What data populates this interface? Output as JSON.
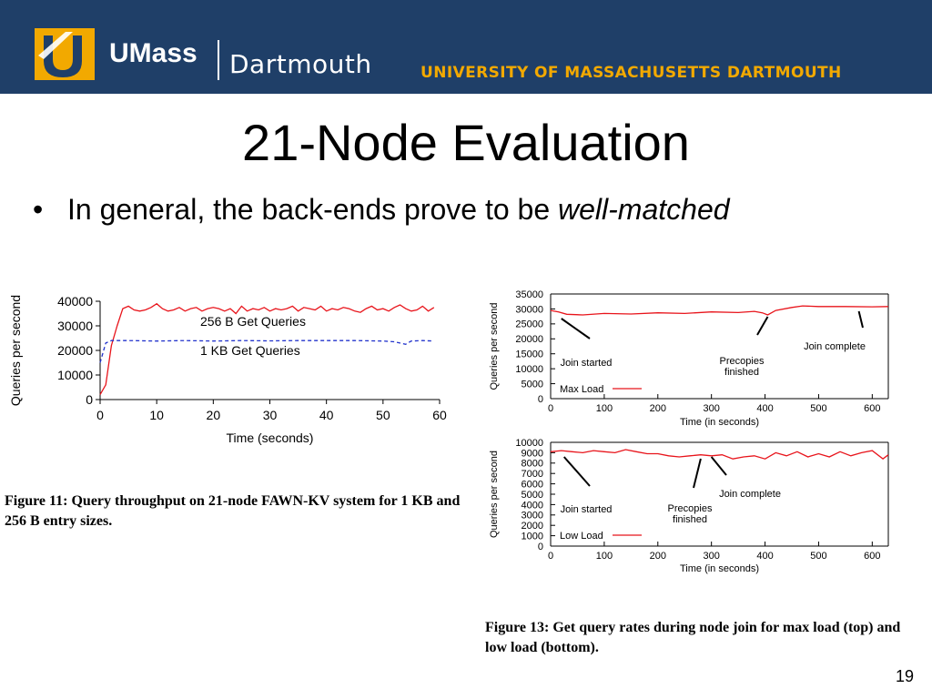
{
  "header": {
    "logo_strong": "UMass",
    "logo_light": "Dartmouth",
    "university": "UNIVERSITY OF MASSACHUSETTS DARTMOUTH",
    "accent_color": "#f2a900",
    "bar_color": "#1f3f68"
  },
  "slide": {
    "title": "21-Node Evaluation",
    "bullet_prefix": "In general, the back-ends prove to be ",
    "bullet_emphasis": "well-matched",
    "page_number": "19"
  },
  "captions": {
    "figure11": "Figure 11: Query throughput on 21-node FAWN-KV system for 1 KB and 256 B entry sizes.",
    "figure13": "Figure 13: Get query rates during node join for max load (top) and low load (bottom)."
  },
  "chart_data": [
    {
      "type": "line",
      "id": "fig11",
      "xlabel": "Time (seconds)",
      "ylabel": "Queries per second",
      "xlim": [
        0,
        60
      ],
      "ylim": [
        0,
        40000
      ],
      "xticks": [
        0,
        10,
        20,
        30,
        40,
        50,
        60
      ],
      "yticks": [
        0,
        10000,
        20000,
        30000,
        40000
      ],
      "series": [
        {
          "name": "256 B Get Queries",
          "color": "#e8141b",
          "style": "solid",
          "x": [
            0,
            1,
            2,
            3,
            4,
            5,
            6,
            7,
            8,
            9,
            10,
            11,
            12,
            13,
            14,
            15,
            16,
            17,
            18,
            19,
            20,
            21,
            22,
            23,
            24,
            25,
            26,
            27,
            28,
            29,
            30,
            31,
            32,
            33,
            34,
            35,
            36,
            37,
            38,
            39,
            40,
            41,
            42,
            43,
            44,
            45,
            46,
            47,
            48,
            49,
            50,
            51,
            52,
            53,
            54,
            55,
            56,
            57,
            58,
            59
          ],
          "y": [
            2000,
            6000,
            22000,
            30000,
            37000,
            38000,
            36500,
            36000,
            36500,
            37500,
            39000,
            37000,
            36000,
            36500,
            37500,
            36000,
            37000,
            37500,
            36000,
            37000,
            37500,
            37000,
            36000,
            37000,
            35000,
            38000,
            36000,
            37000,
            36500,
            37500,
            36000,
            37000,
            36500,
            37000,
            38000,
            36000,
            37500,
            37000,
            36500,
            38000,
            36000,
            37000,
            36500,
            37500,
            37000,
            36000,
            35500,
            37000,
            38000,
            36500,
            37000,
            36000,
            37500,
            38500,
            37000,
            36000,
            36500,
            38000,
            36000,
            37500
          ]
        },
        {
          "name": "1 KB Get Queries",
          "color": "#2233cc",
          "style": "dashed",
          "x": [
            0,
            1,
            2,
            3,
            5,
            10,
            15,
            20,
            25,
            30,
            35,
            40,
            45,
            50,
            52,
            54,
            55,
            57,
            59
          ],
          "y": [
            15000,
            23000,
            24000,
            24000,
            24000,
            23800,
            24000,
            23800,
            24000,
            23900,
            24000,
            24000,
            24000,
            23800,
            23500,
            22500,
            23800,
            24000,
            23800
          ]
        }
      ]
    },
    {
      "type": "line",
      "id": "fig13-top",
      "xlabel": "Time (in seconds)",
      "ylabel": "Queries per second",
      "xlim": [
        0,
        630
      ],
      "ylim": [
        0,
        35000
      ],
      "xticks": [
        0,
        100,
        200,
        300,
        400,
        500,
        600
      ],
      "yticks": [
        0,
        5000,
        10000,
        15000,
        20000,
        25000,
        30000,
        35000
      ],
      "legend": "bottom-left",
      "series": [
        {
          "name": "Max Load",
          "color": "#e8141b",
          "x": [
            0,
            15,
            30,
            60,
            100,
            150,
            200,
            250,
            300,
            350,
            380,
            395,
            405,
            420,
            450,
            470,
            500,
            550,
            600,
            630
          ],
          "y": [
            29500,
            29000,
            28200,
            28000,
            28500,
            28300,
            28700,
            28500,
            29000,
            28800,
            29200,
            28700,
            28000,
            29500,
            30500,
            31000,
            30800,
            30800,
            30700,
            30800
          ]
        }
      ],
      "annotations": [
        {
          "text": "Join started",
          "x": 20
        },
        {
          "text": "Precopies finished",
          "x": 405
        },
        {
          "text": "Join complete",
          "x": 575
        }
      ]
    },
    {
      "type": "line",
      "id": "fig13-bottom",
      "xlabel": "Time (in seconds)",
      "ylabel": "Queries per second",
      "xlim": [
        0,
        630
      ],
      "ylim": [
        0,
        10000
      ],
      "xticks": [
        0,
        100,
        200,
        300,
        400,
        500,
        600
      ],
      "yticks": [
        0,
        1000,
        2000,
        3000,
        4000,
        5000,
        6000,
        7000,
        8000,
        9000,
        10000
      ],
      "legend": "bottom-left",
      "series": [
        {
          "name": "Low Load",
          "color": "#e8141b",
          "x": [
            0,
            20,
            40,
            60,
            80,
            100,
            120,
            140,
            160,
            180,
            200,
            220,
            240,
            260,
            280,
            300,
            320,
            340,
            360,
            380,
            400,
            420,
            440,
            460,
            480,
            500,
            520,
            540,
            560,
            580,
            600,
            620,
            630
          ],
          "y": [
            9100,
            9200,
            9100,
            9000,
            9200,
            9100,
            9000,
            9300,
            9100,
            8900,
            8900,
            8700,
            8600,
            8700,
            8800,
            8700,
            8800,
            8400,
            8600,
            8700,
            8400,
            9000,
            8700,
            9100,
            8600,
            8900,
            8600,
            9100,
            8700,
            9000,
            9200,
            8400,
            8800
          ]
        }
      ],
      "annotations": [
        {
          "text": "Join started",
          "x": 25
        },
        {
          "text": "Precopies finished",
          "x": 280
        },
        {
          "text": "Join complete",
          "x": 300
        }
      ]
    }
  ]
}
